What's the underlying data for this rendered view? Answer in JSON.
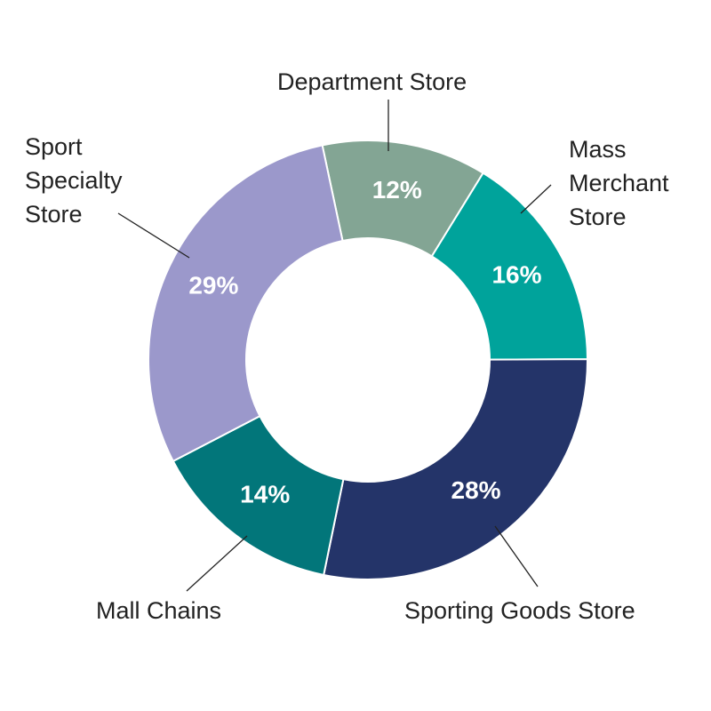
{
  "chart_data": {
    "type": "donut",
    "categories": [
      "Department Store",
      "Mass Merchant Store",
      "Sporting Goods Store",
      "Mall Chains",
      "Sport Specialty Store"
    ],
    "values": [
      12,
      16,
      28,
      14,
      29
    ],
    "value_labels": [
      "12%",
      "16%",
      "28%",
      "14%",
      "29%"
    ],
    "colors": [
      "#83a594",
      "#00a39b",
      "#243469",
      "#02767a",
      "#9b98cb"
    ]
  }
}
